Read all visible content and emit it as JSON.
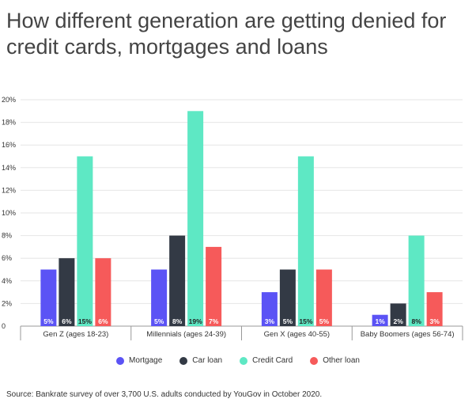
{
  "title": "How different generation are getting denied for credit cards, mortgages and loans",
  "source": "Source: Bankrate survey of over 3,700 U.S. adults conducted by YouGov in October 2020.",
  "colors": {
    "Mortgage": "#5b53f5",
    "Car loan": "#333a45",
    "Credit Card": "#5ee8c4",
    "Other loan": "#f65a5a"
  },
  "chart_data": {
    "type": "bar",
    "categories": [
      "Gen Z (ages 18-23)",
      "Millennials (ages 24-39)",
      "Gen X (ages 40-55)",
      "Baby Boomers (ages 56-74)"
    ],
    "series": [
      {
        "name": "Mortgage",
        "values": [
          5,
          5,
          3,
          1
        ],
        "labels": [
          "5%",
          "5%",
          "3%",
          "1%"
        ]
      },
      {
        "name": "Car loan",
        "values": [
          6,
          8,
          5,
          2
        ],
        "labels": [
          "6%",
          "8%",
          "5%",
          "2%"
        ]
      },
      {
        "name": "Credit Card",
        "values": [
          15,
          19,
          15,
          8
        ],
        "labels": [
          "15%",
          "19%",
          "15%",
          "8%"
        ]
      },
      {
        "name": "Other loan",
        "values": [
          6,
          7,
          5,
          3
        ],
        "labels": [
          "6%",
          "7%",
          "5%",
          "3%"
        ]
      }
    ],
    "ylim": [
      0,
      20
    ],
    "yticks": [
      "0",
      "2%",
      "4%",
      "6%",
      "8%",
      "10%",
      "12%",
      "14%",
      "16%",
      "18%",
      "20%"
    ],
    "grid": true,
    "legend": "bottom"
  }
}
